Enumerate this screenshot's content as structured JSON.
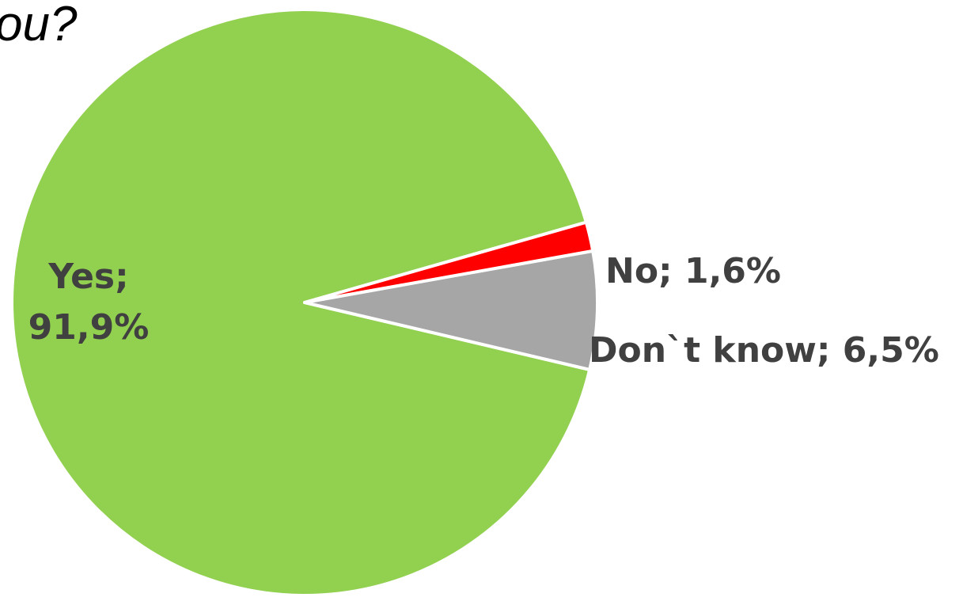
{
  "title": "ou?",
  "chart_data": {
    "type": "pie",
    "title": "ou?",
    "slices": [
      {
        "name": "Yes",
        "value": 91.9,
        "color": "#92d050",
        "label_lines": [
          "Yes;",
          "91,9%"
        ]
      },
      {
        "name": "No",
        "value": 1.6,
        "color": "#ff0000",
        "label_lines": [
          "No; 1,6%"
        ]
      },
      {
        "name": "Don`t know",
        "value": 6.5,
        "color": "#a6a6a6",
        "label_lines": [
          "Don`t know; 6,5%"
        ]
      }
    ],
    "legend": "none",
    "data_labels": "outside/inside with category and percent"
  }
}
